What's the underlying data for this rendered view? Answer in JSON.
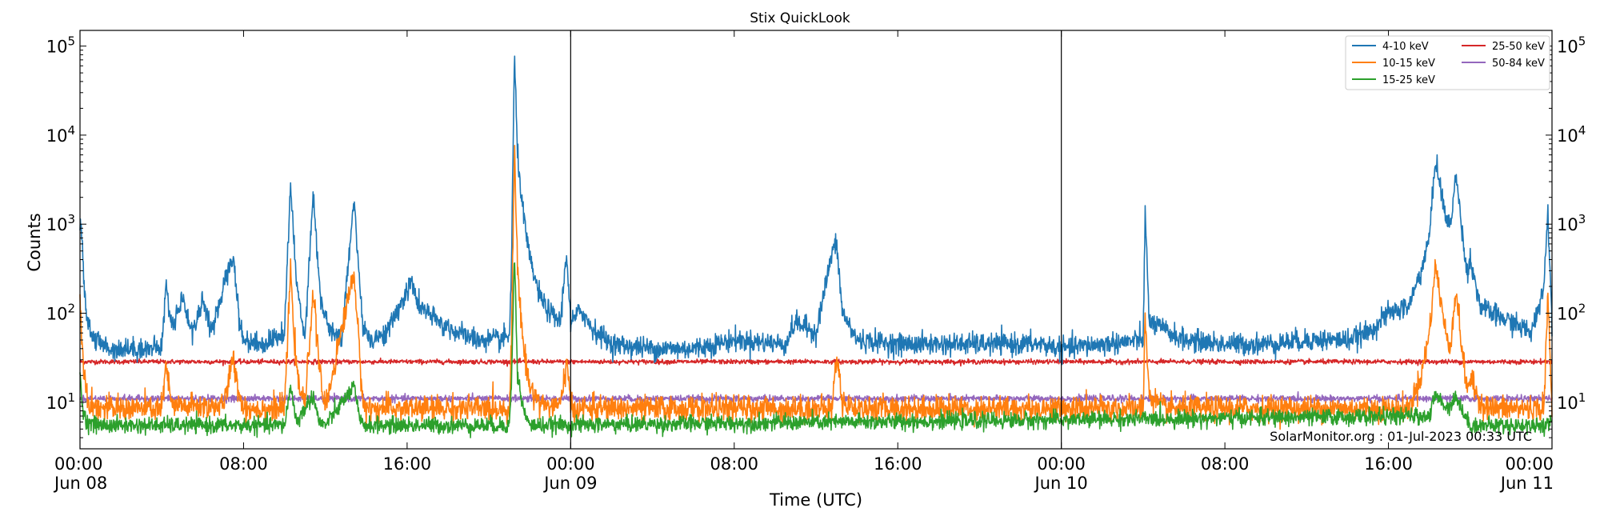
{
  "chart_data": {
    "type": "line",
    "title": "Stix QuickLook",
    "xlabel": "Time (UTC)",
    "ylabel": "Counts",
    "credit": "SolarMonitor.org : 01-Jul-2023 00:33 UTC",
    "y_scale": "log",
    "ylim": [
      3,
      150000
    ],
    "xlim_hours": [
      0,
      72
    ],
    "x_ticks": [
      {
        "hour": 0,
        "label": [
          "00:00",
          "Jun 08"
        ]
      },
      {
        "hour": 8,
        "label": [
          "08:00"
        ]
      },
      {
        "hour": 16,
        "label": [
          "16:00"
        ]
      },
      {
        "hour": 24,
        "label": [
          "00:00",
          "Jun 09"
        ]
      },
      {
        "hour": 32,
        "label": [
          "08:00"
        ]
      },
      {
        "hour": 40,
        "label": [
          "16:00"
        ]
      },
      {
        "hour": 48,
        "label": [
          "00:00",
          "Jun 10"
        ]
      },
      {
        "hour": 56,
        "label": [
          "08:00"
        ]
      },
      {
        "hour": 64,
        "label": [
          "16:00"
        ]
      },
      {
        "hour": 72,
        "label": [
          "00:00",
          "Jun 11"
        ]
      }
    ],
    "y_ticks": [
      {
        "value": 10,
        "exp": "1"
      },
      {
        "value": 100,
        "exp": "2"
      },
      {
        "value": 1000,
        "exp": "3"
      },
      {
        "value": 10000,
        "exp": "4"
      },
      {
        "value": 100000,
        "exp": "5"
      }
    ],
    "day_boundaries_hours": [
      24,
      48
    ],
    "legend": {
      "placement": "top-right",
      "columns": 2
    },
    "series": [
      {
        "name": "4-10 keV",
        "color": "#1f77b4",
        "baseline": 40,
        "noise": 0.12,
        "x_hours": [
          0,
          0.1,
          0.3,
          0.6,
          1.0,
          1.5,
          2.5,
          3.5,
          4.0,
          4.2,
          4.5,
          5.0,
          5.5,
          6.0,
          6.5,
          7.0,
          7.5,
          7.8,
          8.0,
          9.0,
          10.0,
          10.3,
          10.6,
          11.0,
          11.4,
          11.8,
          12.3,
          12.8,
          13.4,
          13.8,
          14.2,
          15.0,
          16.2,
          16.6,
          17.5,
          18.5,
          19.5,
          20.5,
          21.0,
          21.1,
          21.25,
          21.4,
          21.7,
          22.0,
          22.5,
          23.0,
          23.5,
          23.8,
          24.0,
          24.5,
          25.0,
          26.0,
          28.0,
          30.0,
          32.0,
          34.5,
          35.0,
          36.0,
          36.8,
          37.0,
          37.3,
          38.0,
          40.0,
          41.0,
          42.0,
          43.0,
          44.0,
          45.0,
          46.0,
          47.0,
          48.0,
          50.0,
          52.0,
          52.1,
          52.3,
          54.0,
          56.0,
          58.0,
          60.0,
          62.0,
          63.0,
          64.0,
          65.0,
          65.6,
          66.0,
          66.3,
          66.8,
          67.0,
          67.3,
          67.6,
          67.8,
          68.0,
          68.5,
          69.0,
          70.0,
          71.0,
          71.6,
          71.8,
          72.0
        ],
        "y": [
          1000,
          600,
          100,
          55,
          45,
          40,
          40,
          40,
          42,
          200,
          70,
          150,
          60,
          140,
          60,
          200,
          450,
          80,
          50,
          45,
          60,
          2800,
          200,
          55,
          2200,
          120,
          60,
          50,
          2000,
          80,
          50,
          60,
          220,
          120,
          80,
          60,
          50,
          50,
          55,
          300,
          80000,
          6000,
          1200,
          400,
          150,
          100,
          80,
          500,
          75,
          110,
          70,
          45,
          40,
          40,
          50,
          45,
          80,
          60,
          500,
          600,
          100,
          50,
          45,
          45,
          45,
          45,
          45,
          45,
          45,
          45,
          40,
          45,
          50,
          1300,
          80,
          50,
          45,
          45,
          50,
          50,
          60,
          100,
          120,
          300,
          700,
          5500,
          1200,
          900,
          3500,
          900,
          300,
          400,
          120,
          100,
          80,
          60,
          200,
          1400,
          80
        ]
      },
      {
        "name": "10-15 keV",
        "color": "#ff7f0e",
        "baseline": 8.5,
        "noise": 0.14,
        "x_hours": [
          0,
          0.1,
          0.4,
          1.0,
          4.0,
          4.2,
          4.5,
          7.0,
          7.5,
          7.8,
          8.0,
          10.0,
          10.3,
          10.6,
          11.0,
          11.4,
          11.8,
          12.0,
          13.4,
          13.8,
          14.0,
          16.0,
          21.0,
          21.1,
          21.25,
          21.4,
          21.7,
          22.0,
          22.5,
          23.0,
          23.5,
          23.8,
          24.0,
          25.0,
          36.8,
          37.0,
          37.3,
          38.0,
          52.0,
          52.1,
          52.3,
          53.0,
          65.0,
          65.6,
          66.0,
          66.3,
          66.8,
          67.0,
          67.3,
          67.6,
          67.8,
          68.0,
          68.5,
          69.0,
          71.6,
          71.8,
          72.0
        ],
        "y": [
          150,
          40,
          10,
          8.5,
          8.5,
          25,
          9,
          9,
          30,
          12,
          8.5,
          8.5,
          300,
          20,
          9,
          180,
          15,
          8.5,
          300,
          12,
          8.5,
          8.5,
          8.5,
          40,
          8000,
          300,
          40,
          15,
          10,
          9,
          9,
          30,
          8.5,
          8.5,
          8.5,
          35,
          10,
          8.5,
          8.5,
          90,
          12,
          8.5,
          8.5,
          20,
          60,
          350,
          60,
          40,
          180,
          40,
          15,
          18,
          10,
          8.5,
          8.5,
          150,
          8.5
        ]
      },
      {
        "name": "15-25 keV",
        "color": "#2ca02c",
        "baseline": 5.5,
        "noise": 0.09,
        "x_hours": [
          0,
          0.1,
          0.3,
          1.0,
          10.0,
          10.3,
          10.6,
          11.4,
          11.7,
          12.0,
          13.4,
          13.7,
          14.0,
          21.0,
          21.1,
          21.25,
          21.4,
          21.7,
          22.0,
          66.0,
          66.3,
          66.8,
          67.0,
          67.3,
          67.6,
          68.0,
          72.0
        ],
        "y": [
          20,
          10,
          6,
          5.5,
          5.5,
          15,
          6,
          12,
          6,
          5.5,
          15,
          6,
          5.5,
          5.5,
          15,
          500,
          20,
          8,
          5.5,
          7,
          12,
          9,
          9,
          12,
          8,
          5.5,
          5.5
        ]
      },
      {
        "name": "25-50 keV",
        "color": "#d62728",
        "baseline": 28.5,
        "noise": 0.025,
        "x_hours": [
          0,
          72
        ],
        "y": [
          28.5,
          28.5
        ]
      },
      {
        "name": "50-84 keV",
        "color": "#9467bd",
        "baseline": 11,
        "noise": 0.035,
        "x_hours": [
          0,
          72
        ],
        "y": [
          11,
          11
        ]
      }
    ]
  }
}
